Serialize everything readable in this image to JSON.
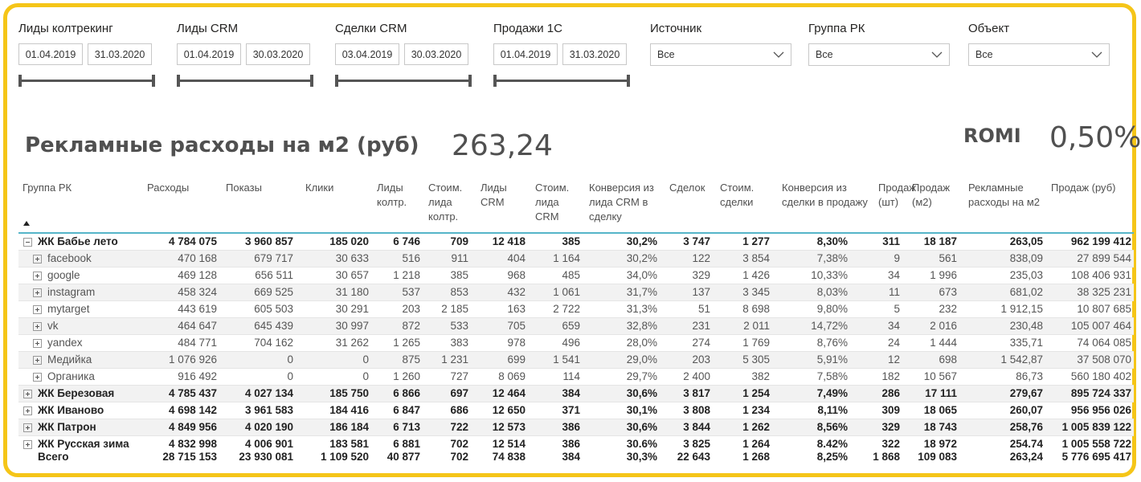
{
  "slicers": [
    {
      "title": "Лиды колтрекинг",
      "from": "01.04.2019",
      "to": "31.03.2020"
    },
    {
      "title": "Лиды CRM",
      "from": "01.04.2019",
      "to": "30.03.2020"
    },
    {
      "title": "Сделки CRM",
      "from": "03.04.2019",
      "to": "30.03.2020"
    },
    {
      "title": "Продажи 1С",
      "from": "01.04.2019",
      "to": "31.03.2020"
    }
  ],
  "dropdowns": [
    {
      "title": "Источник",
      "value": "Все"
    },
    {
      "title": "Группа РК",
      "value": "Все"
    },
    {
      "title": "Объект",
      "value": "Все"
    }
  ],
  "kpi": {
    "title": "Рекламные расходы на м2 (руб)",
    "value": "263,24",
    "romi_label": "ROMI",
    "romi_value": "0,50%"
  },
  "table": {
    "headers": [
      "Группа РК",
      "Расходы",
      "Показы",
      "Клики",
      "Лиды колтр.",
      "Стоим. лида колтр.",
      "Лиды CRM",
      "Стоим. лида CRM",
      "Конверсия из лида CRM в сделку",
      "Сделок",
      "Стоим. сделки",
      "Конверсия из сделки в продажу",
      "Продаж (шт)",
      "Продаж (м2)",
      "Рекламные расходы на м2",
      "Продаж (руб)"
    ],
    "rows": [
      {
        "name": "ЖК Бабье лето",
        "type": "parent-open",
        "v": [
          "4 784 075",
          "3 960 857",
          "185 020",
          "6 746",
          "709",
          "12 418",
          "385",
          "30,2%",
          "3 747",
          "1 277",
          "8,30%",
          "311",
          "18 187",
          "263,05",
          "962 199 412"
        ]
      },
      {
        "name": "facebook",
        "type": "child",
        "v": [
          "470 168",
          "679 717",
          "30 633",
          "516",
          "911",
          "404",
          "1 164",
          "30,2%",
          "122",
          "3 854",
          "7,38%",
          "9",
          "561",
          "838,09",
          "27 899 544"
        ]
      },
      {
        "name": "google",
        "type": "child",
        "v": [
          "469 128",
          "656 511",
          "30 657",
          "1 218",
          "385",
          "968",
          "485",
          "34,0%",
          "329",
          "1 426",
          "10,33%",
          "34",
          "1 996",
          "235,03",
          "108 406 931"
        ]
      },
      {
        "name": "instagram",
        "type": "child",
        "v": [
          "458 324",
          "669 525",
          "31 180",
          "537",
          "853",
          "432",
          "1 061",
          "31,7%",
          "137",
          "3 345",
          "8,03%",
          "11",
          "673",
          "681,02",
          "38 325 231"
        ]
      },
      {
        "name": "mytarget",
        "type": "child",
        "v": [
          "443 619",
          "605 503",
          "30 291",
          "203",
          "2 185",
          "163",
          "2 722",
          "31,3%",
          "51",
          "8 698",
          "9,80%",
          "5",
          "232",
          "1 912,15",
          "10 807 685"
        ]
      },
      {
        "name": "vk",
        "type": "child",
        "v": [
          "464 647",
          "645 439",
          "30 997",
          "872",
          "533",
          "705",
          "659",
          "32,8%",
          "231",
          "2 011",
          "14,72%",
          "34",
          "2 016",
          "230,48",
          "105 007 464"
        ]
      },
      {
        "name": "yandex",
        "type": "child",
        "v": [
          "484 771",
          "704 162",
          "31 262",
          "1 265",
          "383",
          "978",
          "496",
          "28,0%",
          "274",
          "1 769",
          "8,76%",
          "24",
          "1 444",
          "335,71",
          "74 064 085"
        ]
      },
      {
        "name": "Медийка",
        "type": "child",
        "v": [
          "1 076 926",
          "0",
          "0",
          "875",
          "1 231",
          "699",
          "1 541",
          "29,0%",
          "203",
          "5 305",
          "5,91%",
          "12",
          "698",
          "1 542,87",
          "37 508 070"
        ]
      },
      {
        "name": "Органика",
        "type": "child",
        "v": [
          "916 492",
          "0",
          "0",
          "1 260",
          "727",
          "8 069",
          "114",
          "29,7%",
          "2 400",
          "382",
          "7,58%",
          "182",
          "10 567",
          "86,73",
          "560 180 402"
        ]
      },
      {
        "name": "ЖК Березовая",
        "type": "parent",
        "v": [
          "4 785 437",
          "4 027 134",
          "185 750",
          "6 866",
          "697",
          "12 464",
          "384",
          "30,6%",
          "3 817",
          "1 254",
          "7,49%",
          "286",
          "17 111",
          "279,67",
          "895 724 337"
        ]
      },
      {
        "name": "ЖК Иваново",
        "type": "parent",
        "v": [
          "4 698 142",
          "3 961 583",
          "184 416",
          "6 847",
          "686",
          "12 650",
          "371",
          "30,1%",
          "3 808",
          "1 234",
          "8,11%",
          "309",
          "18 065",
          "260,07",
          "956 956 026"
        ]
      },
      {
        "name": "ЖК Патрон",
        "type": "parent",
        "v": [
          "4 849 956",
          "4 020 190",
          "186 184",
          "6 713",
          "722",
          "12 573",
          "386",
          "30,6%",
          "3 844",
          "1 262",
          "8,56%",
          "329",
          "18 743",
          "258,76",
          "1 005 839 122"
        ]
      },
      {
        "name": "ЖК Русская зима",
        "type": "parent",
        "v": [
          "4 832 998",
          "4 006 901",
          "183 581",
          "6 881",
          "702",
          "12 514",
          "386",
          "30.6%",
          "3 825",
          "1 264",
          "8.42%",
          "322",
          "18 972",
          "254.74",
          "1 005 558 722"
        ]
      },
      {
        "name": "Всего",
        "type": "total",
        "v": [
          "28 715 153",
          "23 930 081",
          "1 109 520",
          "40 877",
          "702",
          "74 838",
          "384",
          "30,3%",
          "22 643",
          "1 268",
          "8,25%",
          "1 868",
          "109 083",
          "263,24",
          "5 776 695 417"
        ]
      }
    ]
  }
}
